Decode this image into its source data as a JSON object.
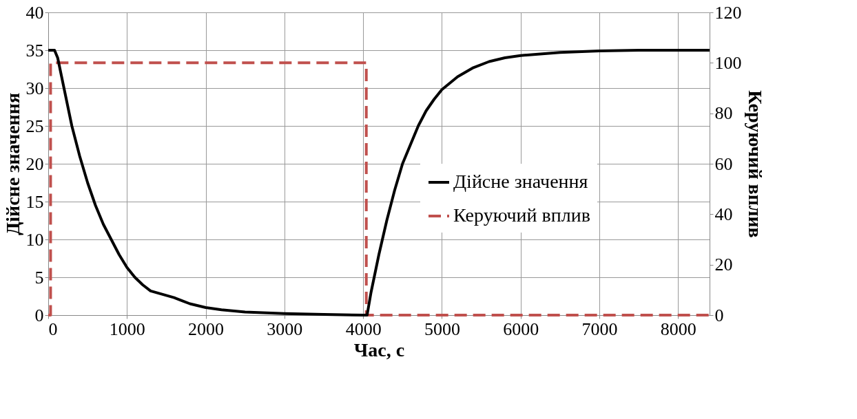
{
  "chart_data": {
    "type": "line",
    "xlabel": "Час, с",
    "ylabel": "Дійсне значення",
    "y2label": "Керуючий вплив",
    "xlim": [
      0,
      8400
    ],
    "xticks": [
      0,
      1000,
      2000,
      3000,
      4000,
      5000,
      6000,
      7000,
      8000
    ],
    "ylim": [
      0,
      40
    ],
    "yticks": [
      0,
      5,
      10,
      15,
      20,
      25,
      30,
      35,
      40
    ],
    "y2lim": [
      0,
      120
    ],
    "y2ticks": [
      0,
      20,
      40,
      60,
      80,
      100,
      120
    ],
    "grid": true,
    "legend": "right",
    "series": [
      {
        "name": "Дійсне значення",
        "color": "#000000",
        "line_style": "solid",
        "x": [
          0,
          80,
          120,
          200,
          300,
          400,
          500,
          600,
          700,
          800,
          900,
          1000,
          1100,
          1200,
          1300,
          1400,
          1500,
          1600,
          1700,
          1800,
          2000,
          2200,
          2500,
          3000,
          3500,
          4000,
          4050,
          4100,
          4200,
          4300,
          4400,
          4500,
          4600,
          4700,
          4800,
          4900,
          5000,
          5200,
          5400,
          5600,
          5800,
          6000,
          6500,
          7000,
          7500,
          8400
        ],
        "values": [
          35,
          35,
          34,
          30,
          25,
          21,
          17.5,
          14.5,
          12,
          10,
          8,
          6.3,
          5,
          4,
          3.2,
          2.9,
          2.6,
          2.3,
          1.9,
          1.5,
          1.0,
          0.7,
          0.4,
          0.2,
          0.1,
          0,
          0,
          3,
          8,
          12.5,
          16.5,
          20,
          22.5,
          25,
          27,
          28.5,
          29.8,
          31.5,
          32.7,
          33.5,
          34,
          34.3,
          34.7,
          34.9,
          35,
          35
        ]
      },
      {
        "name": "Керуючий вплив",
        "color": "#c0504d",
        "line_style": "dashed",
        "axis": "y2",
        "x": [
          0,
          30,
          30,
          4040,
          4040,
          8400
        ],
        "values": [
          0,
          0,
          100,
          100,
          0,
          0
        ]
      }
    ]
  }
}
